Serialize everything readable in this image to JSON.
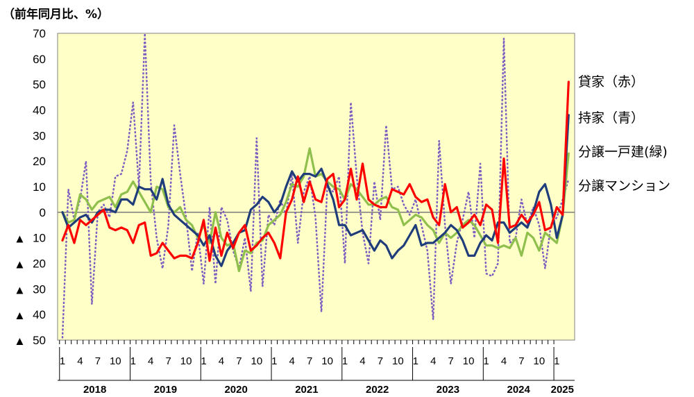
{
  "chart_data": {
    "type": "line",
    "unit_label": "（前年同月比、%）",
    "yaxis": {
      "min": -50,
      "max": 70,
      "ticks": [
        70,
        60,
        50,
        40,
        30,
        20,
        10,
        0,
        -10,
        -20,
        -30,
        -40,
        -50
      ],
      "tick_labels": [
        "70",
        "60",
        "50",
        "40",
        "30",
        "20",
        "10",
        "0",
        "10",
        "20",
        "30",
        "40",
        "50"
      ],
      "negative_marker": "▲"
    },
    "x_month_labels": [
      "1",
      "4",
      "7",
      "10"
    ],
    "years": [
      "2018",
      "2019",
      "2020",
      "2021",
      "2022",
      "2023",
      "2024",
      "2025"
    ],
    "colors": {
      "background": "#ffffc8",
      "zero_line": "#7a7a7a"
    },
    "series": [
      {
        "name": "貸家（赤）",
        "color": "#ff0000",
        "style": "solid",
        "values": [
          -11,
          -5,
          -12,
          -3,
          -5,
          -3,
          -1,
          1,
          -6,
          -7,
          -6,
          -7,
          -12,
          -5,
          -4,
          -17,
          -16,
          -12,
          -15,
          -18,
          -17,
          -17,
          -18,
          -12,
          -3,
          -19,
          -6,
          -17,
          -8,
          -14,
          -8,
          -5,
          -15,
          -13,
          -10,
          -8,
          -12,
          -18,
          0,
          5,
          14,
          4,
          12,
          5,
          4,
          13,
          15,
          2,
          5,
          17,
          5,
          19,
          5,
          3,
          2,
          2,
          9,
          8,
          7,
          11,
          6,
          4,
          5,
          -2,
          -5,
          11,
          0,
          2,
          -6,
          -4,
          -1,
          -5,
          3,
          1,
          -12,
          21,
          -6,
          -5,
          -1,
          -4,
          -1,
          4,
          -7,
          -6,
          2,
          -1,
          51
        ],
        "label_values": []
      },
      {
        "name": "持家（青）",
        "color": "#1f3d7a",
        "style": "solid",
        "values": [
          0,
          -6,
          -4,
          -2,
          -1,
          -4,
          0,
          1,
          1,
          0,
          5,
          5,
          3,
          10,
          9,
          9,
          5,
          13,
          3,
          -1,
          -3,
          -5,
          -7,
          -9,
          -13,
          -9,
          -17,
          -21,
          -15,
          -12,
          -8,
          -7,
          1,
          3,
          6,
          4,
          0,
          3,
          10,
          16,
          12,
          15,
          15,
          14,
          17,
          11,
          5,
          -5,
          -5,
          -9,
          -8,
          -7,
          -11,
          -15,
          -11,
          -13,
          -18,
          -15,
          -13,
          -9,
          -5,
          -13,
          -12,
          -12,
          -10,
          -8,
          -5,
          -7,
          -11,
          -17,
          -17,
          -12,
          -9,
          -11,
          -4,
          -4,
          -8,
          -6,
          -4,
          -6,
          0,
          8,
          11,
          3,
          -10,
          -1,
          38
        ]
      },
      {
        "name": "分譲一戸建(緑)",
        "color": "#8fbf4c",
        "style": "solid",
        "values": [
          0,
          -4,
          -3,
          7,
          5,
          1,
          4,
          5,
          6,
          2,
          7,
          8,
          12,
          8,
          4,
          0,
          10,
          9,
          2,
          0,
          2,
          -3,
          -5,
          -10,
          -5,
          -12,
          0,
          -10,
          -13,
          -12,
          -23,
          -15,
          -16,
          -12,
          -11,
          -5,
          -3,
          -1,
          4,
          11,
          10,
          14,
          25,
          14,
          15,
          12,
          10,
          9,
          5,
          11,
          9,
          6,
          3,
          3,
          5,
          6,
          2,
          1,
          -5,
          -3,
          -1,
          -2,
          -5,
          -7,
          -12,
          -8,
          -10,
          -8,
          -5,
          -3,
          -5,
          -9,
          -13,
          -13,
          -14,
          -13,
          -14,
          -10,
          -17,
          -8,
          -10,
          -15,
          -8,
          -10,
          -12,
          -1,
          23
        ]
      },
      {
        "name": "分譲マンション",
        "color": "#7f5fbf",
        "style": "dotted",
        "values": [
          -49,
          9,
          -3,
          5,
          20,
          -36,
          0,
          3,
          -2,
          14,
          15,
          24,
          43,
          10,
          70,
          12,
          -10,
          -22,
          -5,
          34,
          15,
          -2,
          -23,
          -8,
          -28,
          2,
          -28,
          2,
          -3,
          -15,
          -22,
          -10,
          -31,
          29,
          -29,
          -1,
          -5,
          5,
          -1,
          15,
          -12,
          8,
          14,
          -2,
          -39,
          10,
          8,
          14,
          -20,
          43,
          14,
          -8,
          -20,
          12,
          -3,
          34,
          9,
          10,
          3,
          -1,
          5,
          -5,
          -15,
          -42,
          28,
          -5,
          -28,
          -12,
          -3,
          8,
          -10,
          19,
          -24,
          -25,
          -20,
          68,
          -12,
          -10,
          5,
          -5,
          2,
          -5,
          -22,
          -5,
          -2,
          5,
          13
        ]
      }
    ]
  },
  "legend": [
    {
      "label": "貸家（赤）"
    },
    {
      "label": "持家（青）"
    },
    {
      "label": "分譲一戸建(緑)"
    },
    {
      "label": "分譲マンション"
    }
  ]
}
